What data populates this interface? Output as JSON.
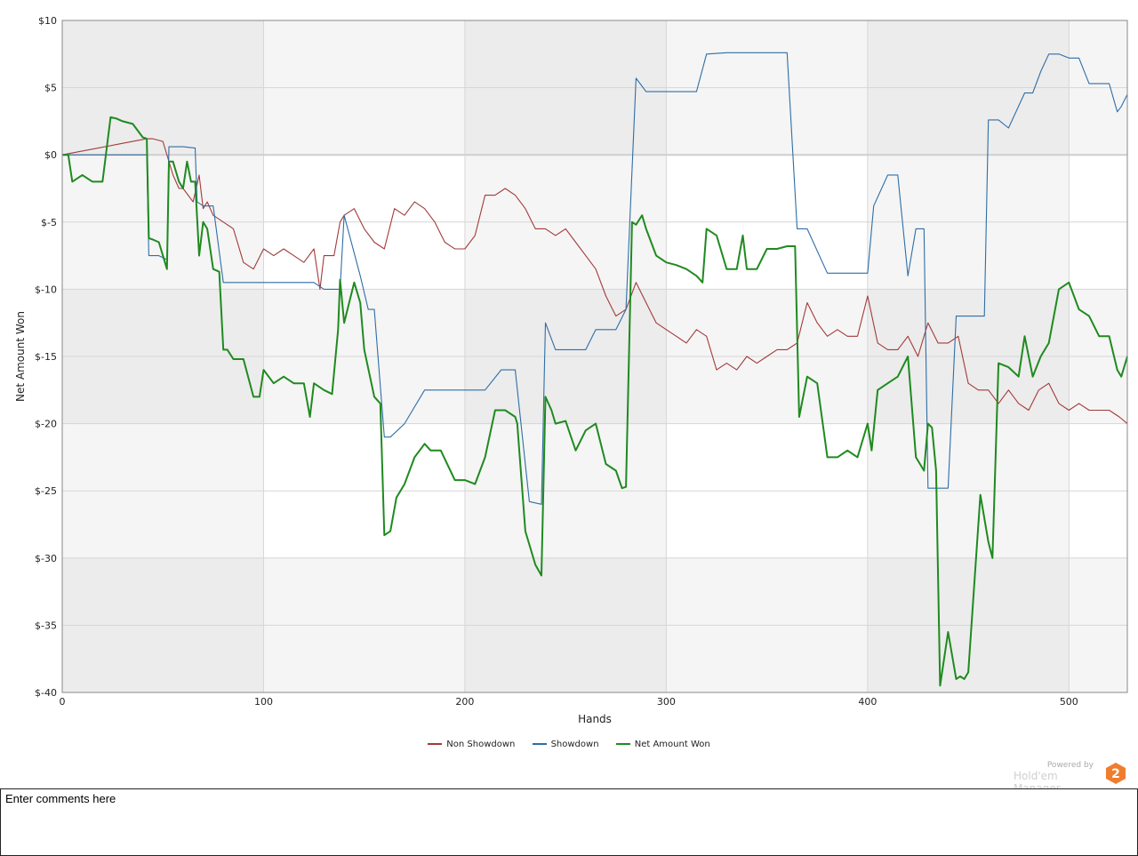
{
  "chart_data": {
    "type": "line",
    "xlabel": "Hands",
    "ylabel": "Net Amount Won",
    "xlim": [
      0,
      529
    ],
    "ylim": [
      -40,
      10
    ],
    "x_ticks": [
      0,
      100,
      200,
      300,
      400,
      500
    ],
    "y_ticks": [
      10,
      5,
      0,
      -5,
      -10,
      -15,
      -20,
      -25,
      -30,
      -35,
      -40
    ],
    "y_tick_labels": [
      "$10",
      "$5",
      "$0",
      "$-5",
      "$-10",
      "$-15",
      "$-20",
      "$-25",
      "$-30",
      "$-35",
      "$-40"
    ],
    "grid": true,
    "legend_position": "bottom",
    "series": [
      {
        "name": "Non Showdown",
        "color": "#a33a3a",
        "x": [
          0,
          42,
          45,
          50,
          55,
          58,
          60,
          65,
          68,
          70,
          72,
          75,
          80,
          85,
          90,
          95,
          100,
          105,
          110,
          115,
          120,
          125,
          128,
          130,
          135,
          138,
          140,
          145,
          150,
          155,
          160,
          165,
          170,
          175,
          180,
          185,
          190,
          195,
          200,
          205,
          210,
          215,
          220,
          225,
          230,
          235,
          240,
          245,
          250,
          255,
          260,
          265,
          270,
          275,
          280,
          285,
          290,
          295,
          300,
          305,
          310,
          315,
          320,
          325,
          330,
          335,
          340,
          345,
          350,
          355,
          360,
          365,
          370,
          375,
          380,
          385,
          390,
          395,
          400,
          405,
          410,
          415,
          420,
          425,
          430,
          435,
          440,
          445,
          450,
          455,
          460,
          465,
          470,
          475,
          480,
          485,
          490,
          495,
          500,
          505,
          510,
          515,
          520,
          525,
          529
        ],
        "values": [
          0,
          1.2,
          1.2,
          1.0,
          -1.5,
          -2.5,
          -2.5,
          -3.5,
          -1.5,
          -4.0,
          -3.5,
          -4.5,
          -5.0,
          -5.5,
          -8.0,
          -8.5,
          -7.0,
          -7.5,
          -7.0,
          -7.5,
          -8.0,
          -7.0,
          -10.0,
          -7.5,
          -7.5,
          -5.0,
          -4.5,
          -4.0,
          -5.5,
          -6.5,
          -7.0,
          -4.0,
          -4.5,
          -3.5,
          -4.0,
          -5.0,
          -6.5,
          -7.0,
          -7.0,
          -6.0,
          -3.0,
          -3.0,
          -2.5,
          -3.0,
          -4.0,
          -5.5,
          -5.5,
          -6.0,
          -5.5,
          -6.5,
          -7.5,
          -8.5,
          -10.5,
          -12.0,
          -11.5,
          -9.5,
          -11.0,
          -12.5,
          -13.0,
          -13.5,
          -14.0,
          -13.0,
          -13.5,
          -16.0,
          -15.5,
          -16.0,
          -15.0,
          -15.5,
          -15.0,
          -14.5,
          -14.5,
          -14.0,
          -11.0,
          -12.5,
          -13.5,
          -13.0,
          -13.5,
          -13.5,
          -10.5,
          -14.0,
          -14.5,
          -14.5,
          -13.5,
          -15.0,
          -12.5,
          -14.0,
          -14.0,
          -13.5,
          -17.0,
          -17.5,
          -17.5,
          -18.5,
          -17.5,
          -18.5,
          -19.0,
          -17.5,
          -17.0,
          -18.5,
          -19.0,
          -18.5,
          -19.0,
          -19.0,
          -19.0,
          -19.5,
          -20.0
        ]
      },
      {
        "name": "Showdown",
        "color": "#2e6ea6",
        "x": [
          0,
          42,
          43,
          48,
          52,
          53,
          60,
          66,
          67,
          70,
          75,
          80,
          82,
          85,
          120,
          125,
          130,
          138,
          140,
          148,
          152,
          155,
          160,
          163,
          170,
          180,
          200,
          210,
          218,
          220,
          225,
          232,
          238,
          240,
          245,
          250,
          260,
          265,
          275,
          280,
          285,
          290,
          300,
          310,
          315,
          320,
          330,
          340,
          350,
          360,
          365,
          370,
          380,
          390,
          400,
          403,
          410,
          415,
          420,
          424,
          428,
          430,
          434,
          438,
          440,
          444,
          448,
          452,
          458,
          460,
          465,
          470,
          478,
          482,
          486,
          490,
          495,
          500,
          505,
          510,
          520,
          524,
          526,
          529
        ],
        "values": [
          0,
          0,
          -7.5,
          -7.5,
          -7.8,
          0.6,
          0.6,
          0.5,
          -3.5,
          -3.8,
          -3.8,
          -9.5,
          -9.5,
          -9.5,
          -9.5,
          -9.5,
          -10.0,
          -10.0,
          -4.5,
          -9.0,
          -11.5,
          -11.5,
          -21.0,
          -21.0,
          -20.0,
          -17.5,
          -17.5,
          -17.5,
          -16.0,
          -16.0,
          -16.0,
          -25.8,
          -26.0,
          -12.5,
          -14.5,
          -14.5,
          -14.5,
          -13.0,
          -13.0,
          -11.5,
          5.7,
          4.7,
          4.7,
          4.7,
          4.7,
          7.5,
          7.6,
          7.6,
          7.6,
          7.6,
          -5.5,
          -5.5,
          -8.8,
          -8.8,
          -8.8,
          -3.8,
          -1.5,
          -1.5,
          -9.0,
          -5.5,
          -5.5,
          -24.8,
          -24.8,
          -24.8,
          -24.8,
          -12.0,
          -12.0,
          -12.0,
          -12.0,
          2.6,
          2.6,
          2.0,
          4.6,
          4.6,
          6.2,
          7.5,
          7.5,
          7.2,
          7.2,
          5.3,
          5.3,
          3.2,
          3.6,
          4.5
        ]
      },
      {
        "name": "Net Amount Won",
        "color": "#1f8a1f",
        "x": [
          0,
          3,
          5,
          10,
          15,
          20,
          24,
          27,
          30,
          35,
          40,
          42,
          43,
          45,
          48,
          52,
          53,
          55,
          58,
          60,
          62,
          64,
          66,
          68,
          70,
          72,
          75,
          78,
          80,
          82,
          85,
          90,
          95,
          98,
          100,
          105,
          110,
          115,
          120,
          123,
          125,
          130,
          134,
          137,
          138,
          140,
          145,
          148,
          150,
          155,
          158,
          160,
          163,
          166,
          170,
          175,
          180,
          183,
          188,
          195,
          200,
          205,
          210,
          215,
          220,
          225,
          226,
          230,
          235,
          238,
          240,
          243,
          245,
          250,
          255,
          260,
          265,
          270,
          275,
          278,
          280,
          283,
          285,
          288,
          290,
          295,
          300,
          305,
          310,
          315,
          318,
          320,
          325,
          330,
          335,
          338,
          340,
          345,
          350,
          355,
          360,
          364,
          366,
          370,
          375,
          380,
          385,
          390,
          395,
          400,
          402,
          405,
          410,
          415,
          420,
          424,
          428,
          430,
          432,
          434,
          436,
          440,
          444,
          446,
          448,
          450,
          456,
          460,
          462,
          465,
          470,
          475,
          478,
          482,
          486,
          490,
          495,
          500,
          505,
          510,
          515,
          520,
          524,
          526,
          529
        ],
        "values": [
          0,
          0,
          -2.0,
          -1.5,
          -2.0,
          -2.0,
          2.8,
          2.7,
          2.5,
          2.3,
          1.3,
          1.2,
          -6.2,
          -6.3,
          -6.5,
          -8.5,
          -0.5,
          -0.5,
          -2.0,
          -2.5,
          -0.5,
          -2.0,
          -2.0,
          -7.5,
          -5.0,
          -5.5,
          -8.5,
          -8.7,
          -14.5,
          -14.5,
          -15.2,
          -15.2,
          -18.0,
          -18.0,
          -16.0,
          -17.0,
          -16.5,
          -17.0,
          -17.0,
          -19.5,
          -17.0,
          -17.5,
          -17.8,
          -13.0,
          -9.3,
          -12.5,
          -9.5,
          -11.0,
          -14.5,
          -18.0,
          -18.5,
          -28.3,
          -28.0,
          -25.5,
          -24.5,
          -22.5,
          -21.5,
          -22.0,
          -22.0,
          -24.2,
          -24.2,
          -24.5,
          -22.5,
          -19.0,
          -19.0,
          -19.5,
          -20.0,
          -28.0,
          -30.5,
          -31.3,
          -18.0,
          -19.0,
          -20.0,
          -19.8,
          -22.0,
          -20.5,
          -20.0,
          -23.0,
          -23.5,
          -24.8,
          -24.7,
          -5.0,
          -5.2,
          -4.5,
          -5.5,
          -7.5,
          -8.0,
          -8.2,
          -8.5,
          -9.0,
          -9.5,
          -5.5,
          -6.0,
          -8.5,
          -8.5,
          -6.0,
          -8.5,
          -8.5,
          -7.0,
          -7.0,
          -6.8,
          -6.8,
          -19.5,
          -16.5,
          -17.0,
          -22.5,
          -22.5,
          -22.0,
          -22.5,
          -20.0,
          -22.0,
          -17.5,
          -17.0,
          -16.5,
          -15.0,
          -22.5,
          -23.5,
          -20.0,
          -20.3,
          -23.5,
          -39.5,
          -35.5,
          -39.0,
          -38.8,
          -39.0,
          -38.5,
          -25.3,
          -28.8,
          -30.0,
          -15.5,
          -15.8,
          -16.5,
          -13.5,
          -16.5,
          -15.0,
          -14.0,
          -10.0,
          -9.5,
          -11.5,
          -12.0,
          -13.5,
          -13.5,
          -16.0,
          -16.5,
          -15.0
        ]
      }
    ]
  },
  "powered_by": {
    "line1": "Powered by",
    "line2": "Hold'em Manager",
    "logo_digit": "2",
    "logo_color": "#f07d2e"
  },
  "comments": {
    "text": "Enter comments here"
  }
}
